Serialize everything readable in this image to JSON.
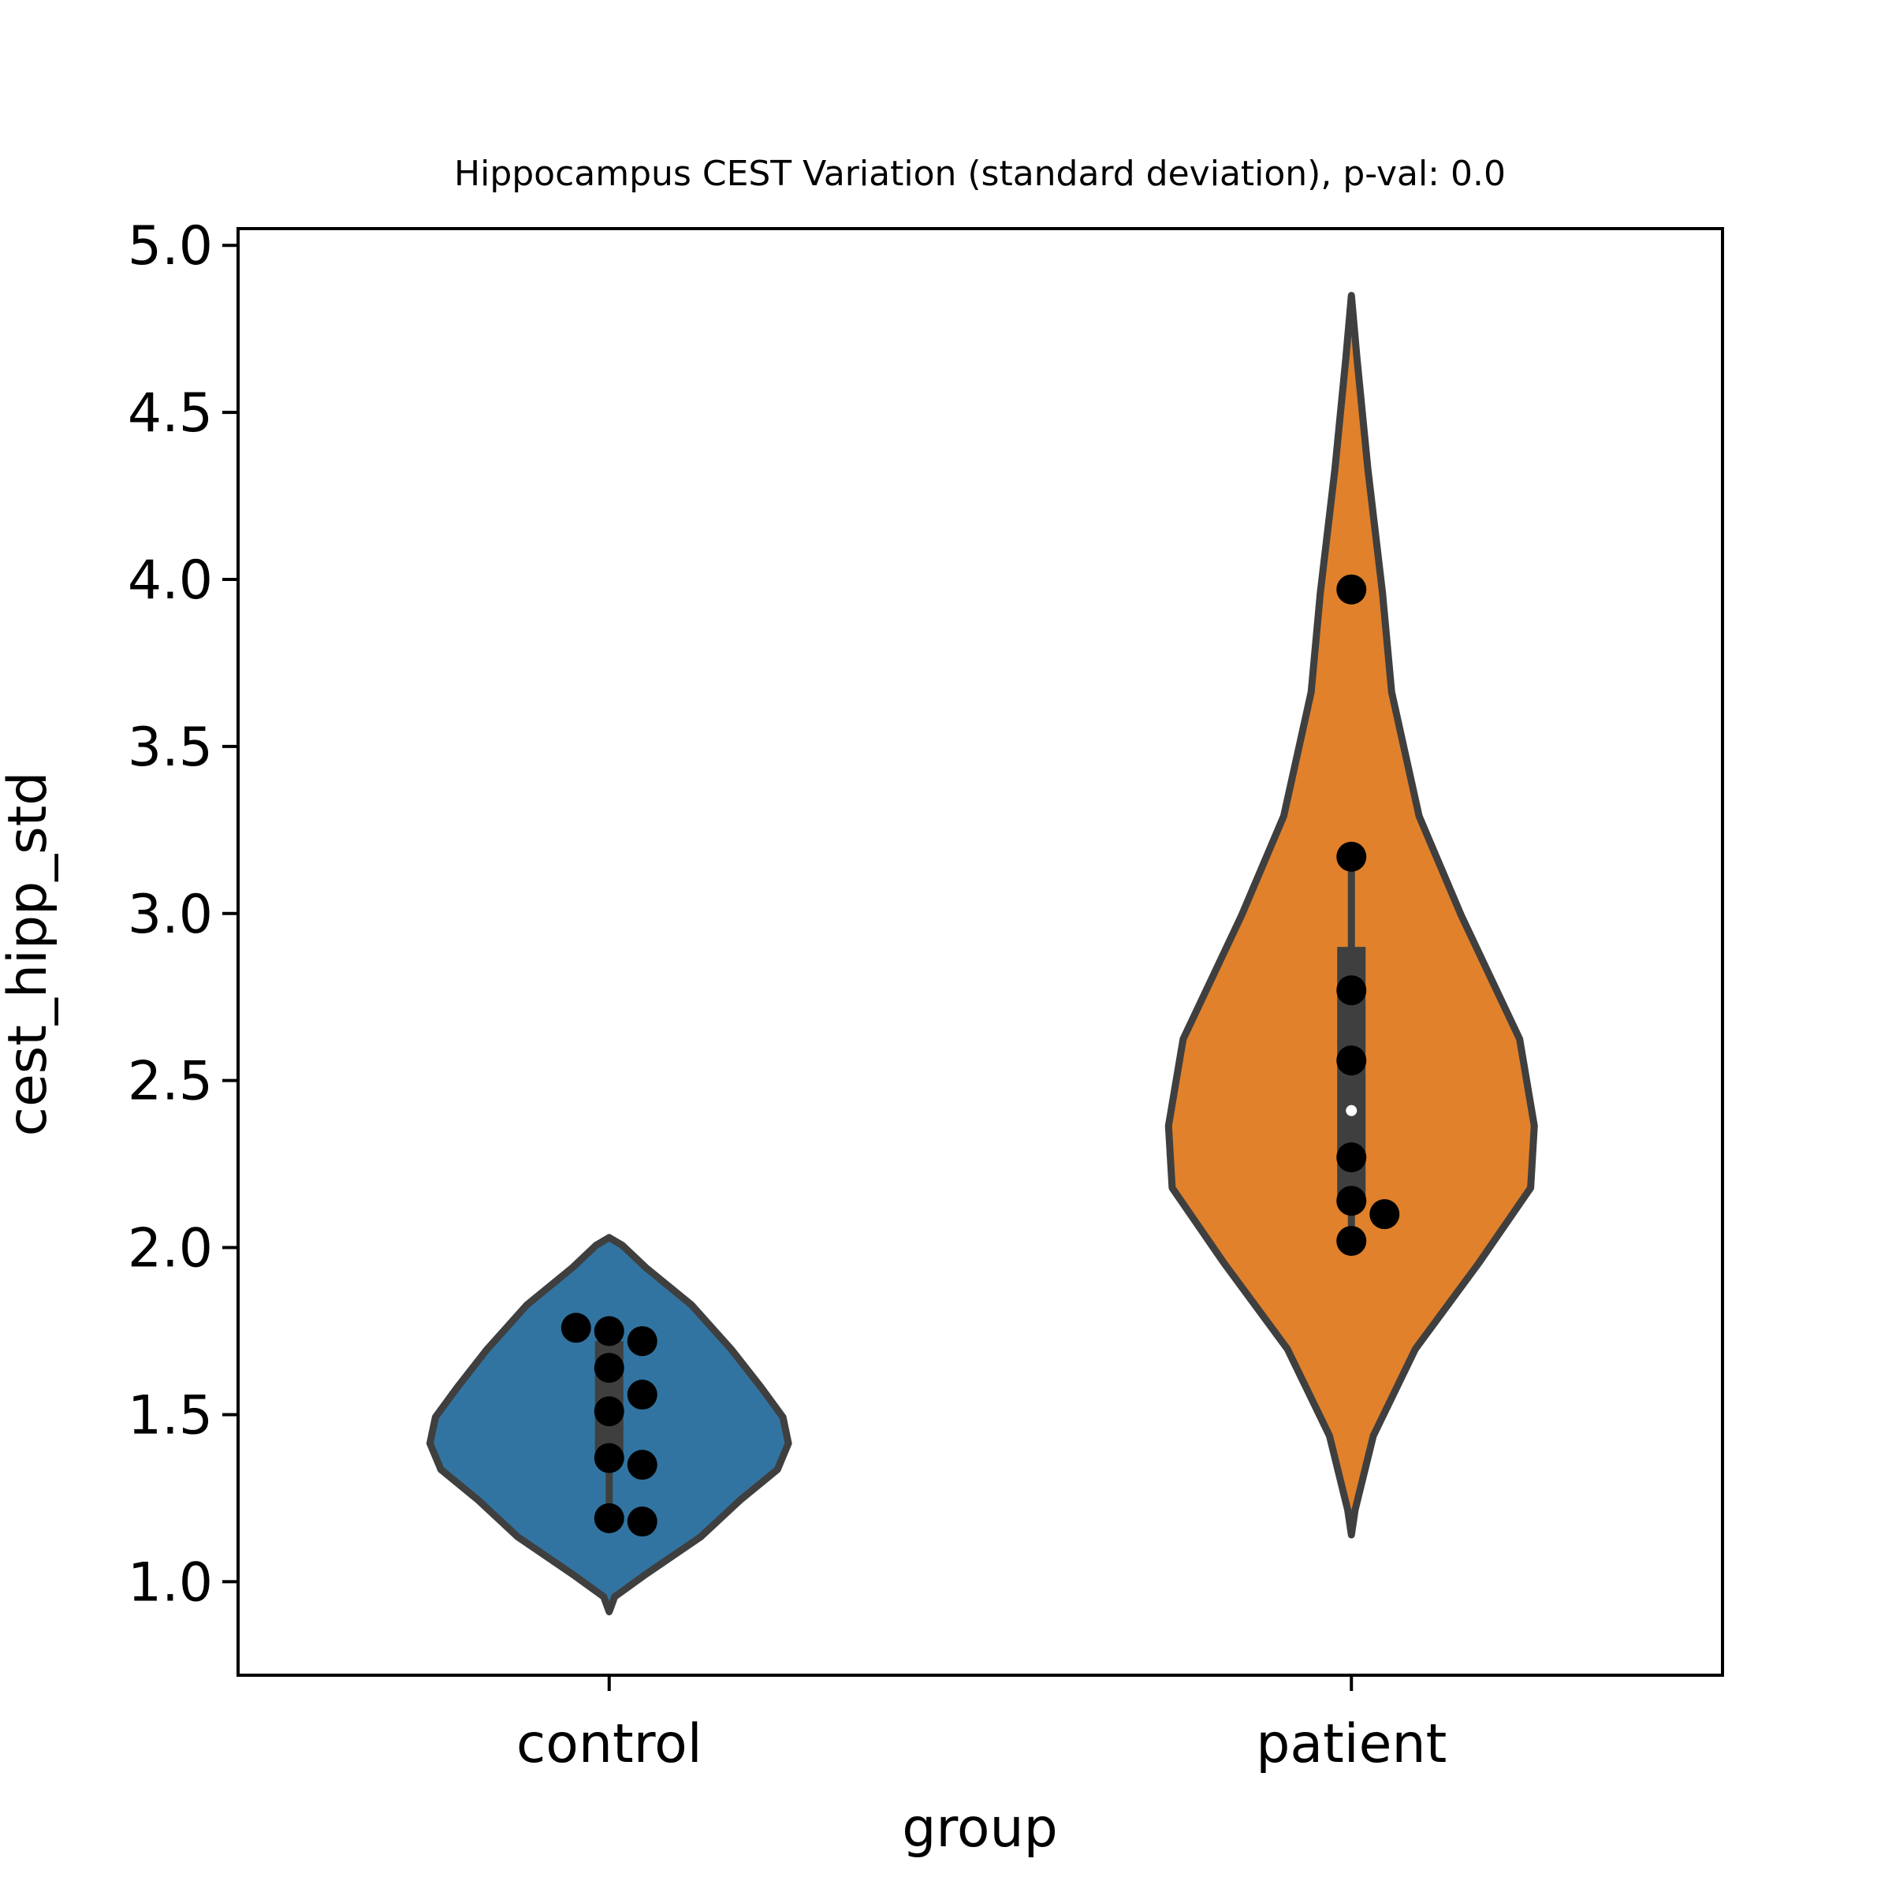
{
  "chart_data": {
    "type": "violin",
    "title": "Hippocampus CEST Variation (standard deviation), p-val: 0.0",
    "xlabel": "group",
    "ylabel": "cest_hipp_std",
    "ylim": [
      0.72,
      5.05
    ],
    "yticks": [
      "1.0",
      "1.5",
      "2.0",
      "2.5",
      "3.0",
      "3.5",
      "4.0",
      "4.5",
      "5.0"
    ],
    "categories": [
      "control",
      "patient"
    ],
    "grid": false,
    "groups": [
      {
        "name": "control",
        "color": "#3274a1",
        "violin_range": [
          0.91,
          2.03
        ],
        "median": 1.51,
        "q1": 1.36,
        "q3": 1.72,
        "whisker": [
          1.18,
          1.76
        ],
        "points": [
          {
            "x": 0,
            "y": 1.19
          },
          {
            "x": 0,
            "y": 1.18
          },
          {
            "x": 0,
            "y": 1.37
          },
          {
            "x": 0,
            "y": 1.35
          },
          {
            "x": 0,
            "y": 1.51
          },
          {
            "x": 0,
            "y": 1.56
          },
          {
            "x": 0,
            "y": 1.64
          },
          {
            "x": 0,
            "y": 1.72
          },
          {
            "x": 0,
            "y": 1.75
          },
          {
            "x": 0,
            "y": 1.76
          }
        ]
      },
      {
        "name": "patient",
        "color": "#e1812c",
        "violin_range": [
          1.14,
          4.85
        ],
        "median": 2.41,
        "q1": 2.15,
        "q3": 2.9,
        "whisker": [
          2.02,
          3.17
        ],
        "points": [
          {
            "x": 1,
            "y": 2.02
          },
          {
            "x": 1,
            "y": 2.1
          },
          {
            "x": 1,
            "y": 2.14
          },
          {
            "x": 1,
            "y": 2.27
          },
          {
            "x": 1,
            "y": 2.56
          },
          {
            "x": 1,
            "y": 2.77
          },
          {
            "x": 1,
            "y": 3.17
          },
          {
            "x": 1,
            "y": 3.97
          }
        ]
      }
    ]
  }
}
